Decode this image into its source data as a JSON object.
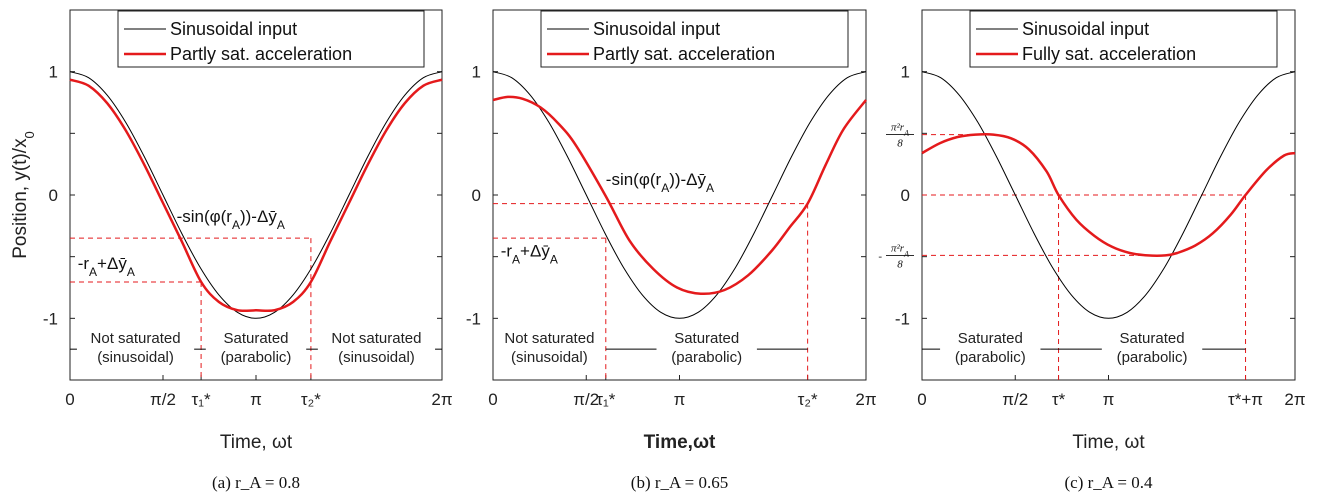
{
  "ylabel": "Position, y(t)/x",
  "ylabel_sub": "0",
  "colors": {
    "input": "#000000",
    "output": "#e41a1c",
    "guide": "#e41a1c",
    "region": "#000000"
  },
  "chart_data": [
    {
      "type": "line",
      "xlabel": "Time, ωt",
      "caption": "(a)  r_A = 0.8",
      "xlim": [
        0,
        6.2832
      ],
      "ylim": [
        -1.5,
        1.5
      ],
      "xtick_values": [
        0,
        1.5708,
        2.2143,
        3.1416,
        4.0689,
        6.2832
      ],
      "xtick_labels": [
        "0",
        "π/2",
        "τ₁*",
        "π",
        "τ₂*",
        "2π"
      ],
      "ytick_values": [
        1,
        0,
        -1
      ],
      "ytick_labels": [
        "1",
        "0",
        "-1"
      ],
      "series": [
        {
          "name": "Sinusoidal input",
          "x": [
            0,
            0.3142,
            0.6283,
            0.9425,
            1.2566,
            1.5708,
            1.885,
            2.1991,
            2.5133,
            2.8274,
            3.1416,
            3.4558,
            3.7699,
            4.0841,
            4.3982,
            4.7124,
            5.0265,
            5.3407,
            5.6549,
            5.969,
            6.2832
          ],
          "y": [
            1,
            0.951,
            0.809,
            0.588,
            0.309,
            0,
            -0.309,
            -0.588,
            -0.809,
            -0.951,
            -1,
            -0.951,
            -0.809,
            -0.588,
            -0.309,
            0,
            0.309,
            0.588,
            0.809,
            0.951,
            1
          ]
        },
        {
          "name": "Partly sat. acceleration",
          "x": [
            0,
            0.3142,
            0.6283,
            0.9425,
            1.2566,
            1.5708,
            1.885,
            2.2143,
            2.5133,
            2.8274,
            3.1416,
            3.4558,
            3.7699,
            4.0689,
            4.3982,
            4.7124,
            5.0265,
            5.3407,
            5.6549,
            5.969,
            6.2832
          ],
          "y": [
            0.935,
            0.886,
            0.744,
            0.523,
            0.244,
            -0.065,
            -0.374,
            -0.705,
            -0.867,
            -0.934,
            -0.935,
            -0.934,
            -0.867,
            -0.705,
            -0.374,
            -0.065,
            0.244,
            0.523,
            0.744,
            0.886,
            0.935
          ]
        }
      ],
      "legend": [
        "Sinusoidal input",
        "Partly sat. acceleration"
      ],
      "guides": [
        {
          "y": -0.35,
          "x_to": 4.0689,
          "vertical": true
        },
        {
          "y": -0.705,
          "x_to": 2.2143,
          "vertical": true
        }
      ],
      "annotations": [
        {
          "text": "-sin(φ(r",
          "sub": "A",
          "tail": "))-Δȳ",
          "sub2": "A",
          "x": 1.8,
          "y": -0.22
        },
        {
          "text": "-r",
          "sub": "A",
          "tail": "+Δȳ",
          "sub2": "A",
          "x": 0.13,
          "y": -0.6
        }
      ],
      "region_y": -1.25,
      "region_bounds": [
        0,
        2.2143,
        4.0689,
        6.2832
      ],
      "regions": [
        {
          "line1": "Not saturated",
          "line2": "(sinusoidal)"
        },
        {
          "line1": "Saturated",
          "line2": "(parabolic)"
        },
        {
          "line1": "Not saturated",
          "line2": "(sinusoidal)"
        }
      ]
    },
    {
      "type": "line",
      "xlabel": "Time,ωt",
      "xlabel_bold": true,
      "caption": "(b)  r_A = 0.65",
      "xlim": [
        0,
        6.2832
      ],
      "ylim": [
        -1.5,
        1.5
      ],
      "xtick_values": [
        0,
        1.5708,
        1.9,
        3.1416,
        5.3,
        6.2832
      ],
      "xtick_labels": [
        "0",
        "π/2",
        "τ₁*",
        "π",
        "τ₂*",
        "2π"
      ],
      "ytick_values": [
        1,
        0,
        -1
      ],
      "ytick_labels": [
        "1",
        "0",
        "-1"
      ],
      "series": [
        {
          "name": "Sinusoidal input",
          "x": [
            0,
            0.3142,
            0.6283,
            0.9425,
            1.2566,
            1.5708,
            1.885,
            2.1991,
            2.5133,
            2.8274,
            3.1416,
            3.4558,
            3.7699,
            4.0841,
            4.3982,
            4.7124,
            5.0265,
            5.3407,
            5.6549,
            5.969,
            6.2832
          ],
          "y": [
            1,
            0.951,
            0.809,
            0.588,
            0.309,
            0,
            -0.309,
            -0.588,
            -0.809,
            -0.951,
            -1,
            -0.951,
            -0.809,
            -0.588,
            -0.309,
            0,
            0.309,
            0.588,
            0.809,
            0.951,
            1
          ]
        },
        {
          "name": "Partly sat. acceleration",
          "x": [
            0,
            0.25,
            0.5,
            0.8,
            1.1,
            1.4,
            1.9,
            2.3,
            2.7,
            3.1,
            3.5,
            3.9,
            4.3,
            4.7,
            5.0,
            5.3,
            5.6,
            5.9,
            6.2832
          ],
          "y": [
            0.77,
            0.795,
            0.78,
            0.71,
            0.58,
            0.4,
            -0.01,
            -0.37,
            -0.6,
            -0.75,
            -0.8,
            -0.77,
            -0.65,
            -0.45,
            -0.26,
            -0.07,
            0.24,
            0.53,
            0.77
          ]
        }
      ],
      "legend": [
        "Sinusoidal input",
        "Partly sat. acceleration"
      ],
      "guides": [
        {
          "y": -0.07,
          "x_to": 5.3,
          "vertical": true
        },
        {
          "y": -0.35,
          "x_to": 1.9,
          "vertical": true
        }
      ],
      "annotations": [
        {
          "text": "-sin(φ(r",
          "sub": "A",
          "tail": "))-Δȳ",
          "sub2": "A",
          "x": 1.9,
          "y": 0.08
        },
        {
          "text": "-r",
          "sub": "A",
          "tail": "+Δȳ",
          "sub2": "A",
          "x": 0.13,
          "y": -0.5
        }
      ],
      "region_y": -1.25,
      "region_bounds": [
        0,
        1.9,
        5.3
      ],
      "regions": [
        {
          "line1": "Not saturated",
          "line2": "(sinusoidal)"
        },
        {
          "line1": "Saturated",
          "line2": "(parabolic)"
        }
      ]
    },
    {
      "type": "line",
      "xlabel": "Time, ωt",
      "caption": "(c)  r_A = 0.4",
      "xlim": [
        0,
        6.2832
      ],
      "ylim": [
        -1.5,
        1.5
      ],
      "xtick_values": [
        0,
        1.5708,
        2.3,
        3.1416,
        5.45,
        6.2832
      ],
      "xtick_labels": [
        "0",
        "π/2",
        "τ*",
        "π",
        "τ*+π",
        "2π"
      ],
      "ytick_values": [
        1,
        0,
        -1
      ],
      "ytick_labels": [
        "1",
        "0",
        "-1"
      ],
      "series": [
        {
          "name": "Sinusoidal input",
          "x": [
            0,
            0.3142,
            0.6283,
            0.9425,
            1.2566,
            1.5708,
            1.885,
            2.1991,
            2.5133,
            2.8274,
            3.1416,
            3.4558,
            3.7699,
            4.0841,
            4.3982,
            4.7124,
            5.0265,
            5.3407,
            5.6549,
            5.969,
            6.2832
          ],
          "y": [
            1,
            0.951,
            0.809,
            0.588,
            0.309,
            0,
            -0.309,
            -0.588,
            -0.809,
            -0.951,
            -1,
            -0.951,
            -0.809,
            -0.588,
            -0.309,
            0,
            0.309,
            0.588,
            0.809,
            0.951,
            1
          ]
        },
        {
          "name": "Fully sat. acceleration",
          "x": [
            0,
            0.3,
            0.6,
            0.9,
            1.2,
            1.5,
            1.8,
            2.1,
            2.3,
            2.6,
            2.9,
            3.2,
            3.5,
            3.8,
            4.1,
            4.3,
            4.6,
            4.9,
            5.2,
            5.45,
            5.8,
            6.1,
            6.2832
          ],
          "y": [
            0.34,
            0.42,
            0.47,
            0.49,
            0.49,
            0.46,
            0.37,
            0.19,
            0,
            -0.2,
            -0.33,
            -0.42,
            -0.47,
            -0.49,
            -0.49,
            -0.47,
            -0.41,
            -0.31,
            -0.16,
            0,
            0.2,
            0.32,
            0.34
          ]
        }
      ],
      "legend": [
        "Sinusoidal input",
        "Fully sat. acceleration"
      ],
      "guides": [
        {
          "y": 0.49,
          "x_to": 1.1,
          "vertical": false
        },
        {
          "y": 0,
          "x_to": 5.45,
          "vertical": false
        },
        {
          "y": -0.49,
          "x_to": 3.9,
          "vertical": false
        },
        {
          "y": 0,
          "x_to": 2.3,
          "x_from_val": 2.3,
          "vertical_only": true
        },
        {
          "y": 0,
          "x_to": 5.45,
          "x_from_val": 5.45,
          "vertical_only": true
        }
      ],
      "fraction_labels": [
        {
          "num": "π²r",
          "sub": "A",
          "den": "8",
          "y": 0.49,
          "prefix": ""
        },
        {
          "num": "π²r",
          "sub": "A",
          "den": "8",
          "y": -0.49,
          "prefix": "-"
        }
      ],
      "annotations": [],
      "region_y": -1.25,
      "region_bounds": [
        0,
        2.3,
        5.45
      ],
      "regions": [
        {
          "line1": "Saturated",
          "line2": "(parabolic)"
        },
        {
          "line1": "Saturated",
          "line2": "(parabolic)"
        }
      ]
    }
  ]
}
